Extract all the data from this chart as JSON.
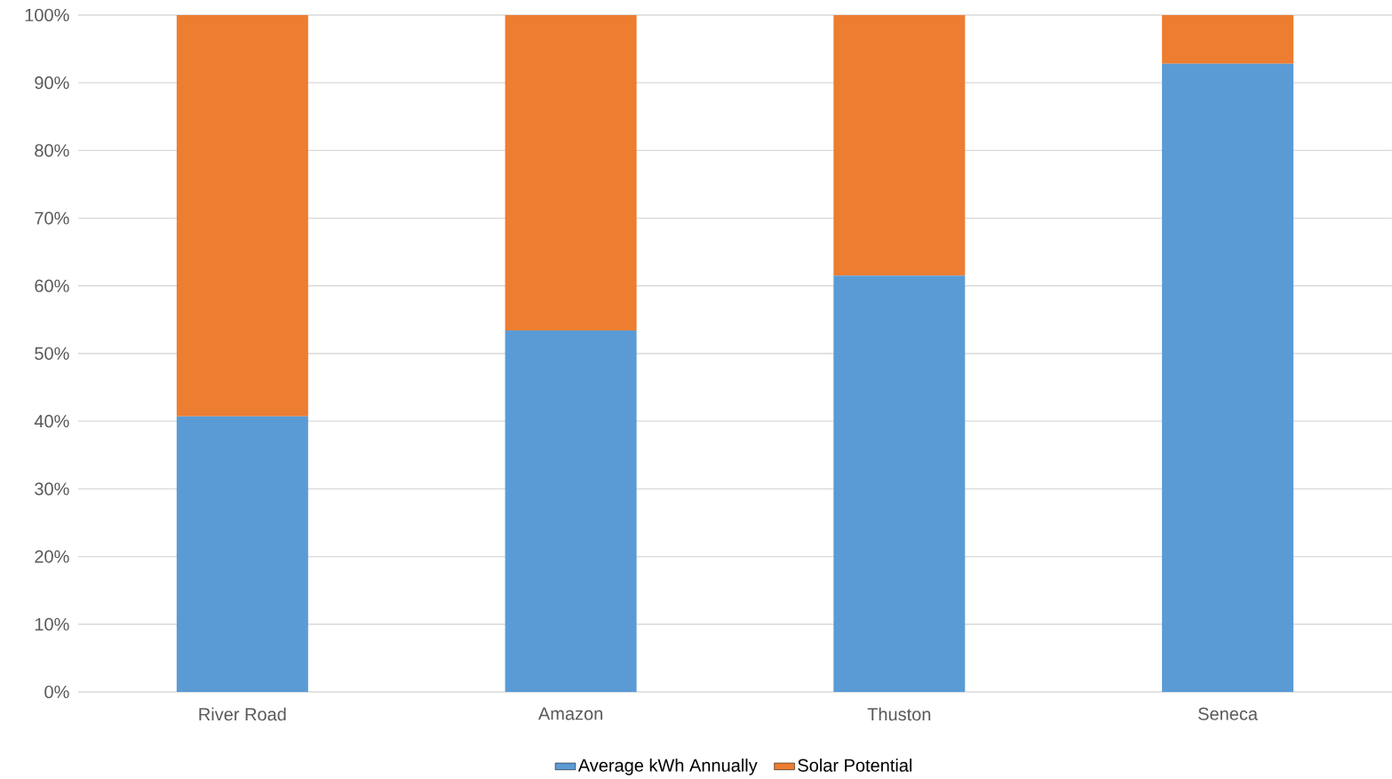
{
  "chart_data": {
    "type": "bar",
    "stacked": true,
    "categories": [
      "River Road",
      "Amazon",
      "Thuston",
      "Seneca"
    ],
    "series": [
      {
        "name": "Average kWh Annually",
        "color": "#5b9bd5",
        "values": [
          40.7,
          53.4,
          61.5,
          92.8
        ]
      },
      {
        "name": "Solar Potential",
        "color": "#ed7d31",
        "values": [
          59.3,
          46.6,
          38.5,
          7.2
        ]
      }
    ],
    "ylim": [
      0,
      100
    ],
    "yticks": [
      {
        "value": 0,
        "label": "0%"
      },
      {
        "value": 10,
        "label": "10%"
      },
      {
        "value": 20,
        "label": "20%"
      },
      {
        "value": 30,
        "label": "30%"
      },
      {
        "value": 40,
        "label": "40%"
      },
      {
        "value": 50,
        "label": "50%"
      },
      {
        "value": 60,
        "label": "60%"
      },
      {
        "value": 70,
        "label": "70%"
      },
      {
        "value": 80,
        "label": "80%"
      },
      {
        "value": 90,
        "label": "90%"
      },
      {
        "value": 100,
        "label": "100%"
      }
    ],
    "grid": "y",
    "legend": "bottom"
  }
}
